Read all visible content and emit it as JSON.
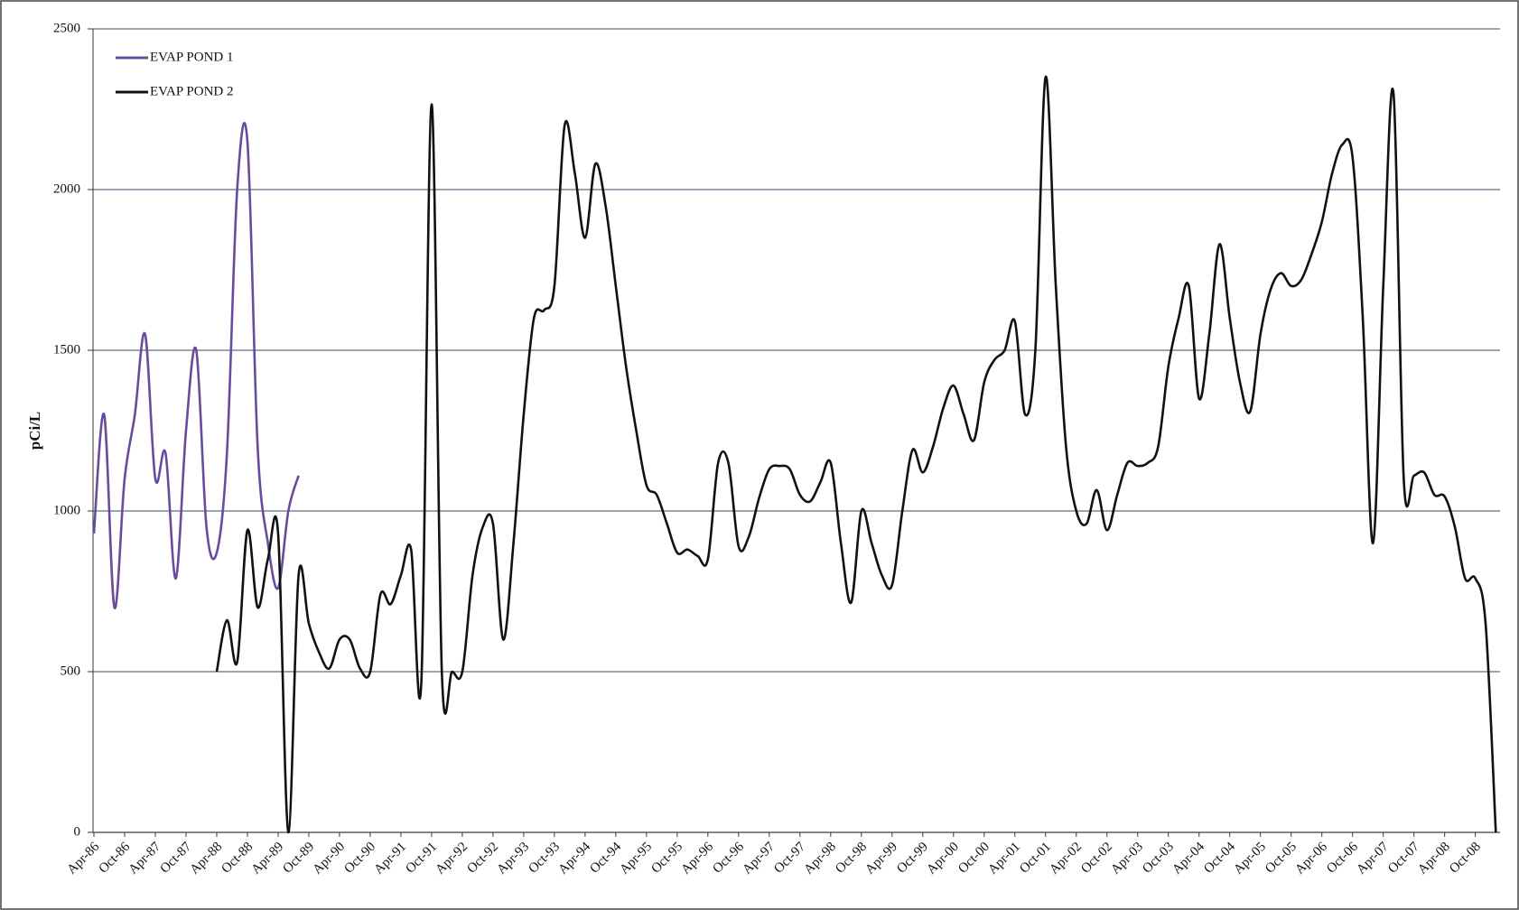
{
  "chart_data": {
    "type": "line",
    "y_label": "pCi/L",
    "ylim": [
      0,
      2500
    ],
    "yticks": [
      0,
      500,
      1000,
      1500,
      2000,
      2500
    ],
    "grid": true,
    "legend": "upper left",
    "categories": [
      "Apr-86",
      null,
      null,
      "Oct-86",
      null,
      null,
      "Apr-87",
      null,
      null,
      "Oct-87",
      null,
      null,
      "Apr-88",
      null,
      null,
      "Oct-88",
      null,
      null,
      "Apr-89",
      null,
      null,
      "Oct-89",
      null,
      null,
      "Apr-90",
      null,
      null,
      "Oct-90",
      null,
      null,
      "Apr-91",
      null,
      null,
      "Oct-91",
      null,
      null,
      "Apr-92",
      null,
      null,
      "Oct-92",
      null,
      null,
      "Apr-93",
      null,
      null,
      "Oct-93",
      null,
      null,
      "Apr-94",
      null,
      null,
      "Oct-94",
      null,
      null,
      "Apr-95",
      null,
      null,
      "Oct-95",
      null,
      null,
      "Apr-96",
      null,
      null,
      "Oct-96",
      null,
      null,
      "Apr-97",
      null,
      null,
      "Oct-97",
      null,
      null,
      "Apr-98",
      null,
      null,
      "Oct-98",
      null,
      null,
      "Apr-99",
      null,
      null,
      "Oct-99",
      null,
      null,
      "Apr-00",
      null,
      null,
      "Oct-00",
      null,
      null,
      "Apr-01",
      null,
      null,
      "Oct-01",
      null,
      null,
      "Apr-02",
      null,
      null,
      "Oct-02",
      null,
      null,
      "Apr-03",
      null,
      null,
      "Oct-03",
      null,
      null,
      "Apr-04",
      null,
      null,
      "Oct-04",
      null,
      null,
      "Apr-05",
      null,
      null,
      "Oct-05",
      null,
      null,
      "Apr-06",
      null,
      null,
      "Oct-06",
      null,
      null,
      "Apr-07",
      null,
      null,
      "Oct-07",
      null,
      null,
      "Apr-08",
      null,
      null,
      "Oct-08",
      null,
      null
    ],
    "series": [
      {
        "name": "EVAP POND 1",
        "color": "#6a4c9c",
        "values": [
          930,
          1300,
          700,
          1100,
          1300,
          1550,
          1100,
          1180,
          790,
          1250,
          1500,
          950,
          870,
          1180,
          2000,
          2150,
          1200,
          900,
          760,
          1000,
          1110,
          null,
          null,
          null,
          null,
          null,
          null,
          null,
          null,
          null,
          null,
          null,
          null,
          null,
          null,
          null,
          null,
          null,
          null,
          null,
          null,
          null,
          null,
          null,
          null,
          null,
          null,
          null,
          null,
          null,
          null,
          null,
          null,
          null,
          null,
          null,
          null,
          null,
          null,
          null,
          null,
          null,
          null,
          null,
          null,
          null,
          null,
          null,
          null,
          null,
          null,
          null,
          null,
          null,
          null,
          null,
          null,
          null,
          null,
          null,
          null,
          null,
          null,
          null,
          null,
          null,
          null,
          null,
          null,
          null,
          null,
          null,
          null,
          null,
          null,
          null,
          null,
          null,
          null,
          null,
          null,
          null,
          null,
          null,
          null,
          null,
          null,
          null,
          null,
          null,
          null,
          null,
          null,
          null,
          null,
          null,
          null,
          null,
          null,
          null,
          null,
          null,
          null,
          null,
          null,
          null,
          null,
          null,
          null,
          null,
          null,
          null,
          null,
          null,
          null,
          null,
          null,
          null
        ]
      },
      {
        "name": "EVAP POND 2",
        "color": "#111111",
        "values": [
          null,
          null,
          null,
          null,
          null,
          null,
          null,
          null,
          null,
          null,
          null,
          null,
          500,
          660,
          530,
          940,
          700,
          850,
          930,
          0,
          800,
          650,
          560,
          510,
          600,
          600,
          510,
          500,
          740,
          710,
          800,
          880,
          470,
          2265,
          500,
          500,
          500,
          800,
          950,
          960,
          600,
          900,
          1300,
          1600,
          1625,
          1700,
          2200,
          2050,
          1850,
          2080,
          1950,
          1700,
          1450,
          1250,
          1080,
          1050,
          960,
          870,
          880,
          860,
          850,
          1150,
          1150,
          890,
          920,
          1040,
          1130,
          1140,
          1130,
          1050,
          1030,
          1090,
          1150,
          900,
          715,
          1000,
          900,
          800,
          770,
          1000,
          1190,
          1120,
          1200,
          1320,
          1390,
          1300,
          1220,
          1400,
          1470,
          1500,
          1590,
          1300,
          1500,
          2350,
          1700,
          1200,
          1000,
          960,
          1065,
          940,
          1050,
          1150,
          1140,
          1150,
          1200,
          1450,
          1600,
          1700,
          1350,
          1550,
          1830,
          1600,
          1400,
          1310,
          1550,
          1690,
          1740,
          1700,
          1720,
          1800,
          1900,
          2050,
          2140,
          2100,
          1600,
          900,
          1700,
          2300,
          1100,
          1110,
          1120,
          1050,
          1045,
          950,
          790,
          790,
          650,
          0
        ]
      }
    ]
  }
}
